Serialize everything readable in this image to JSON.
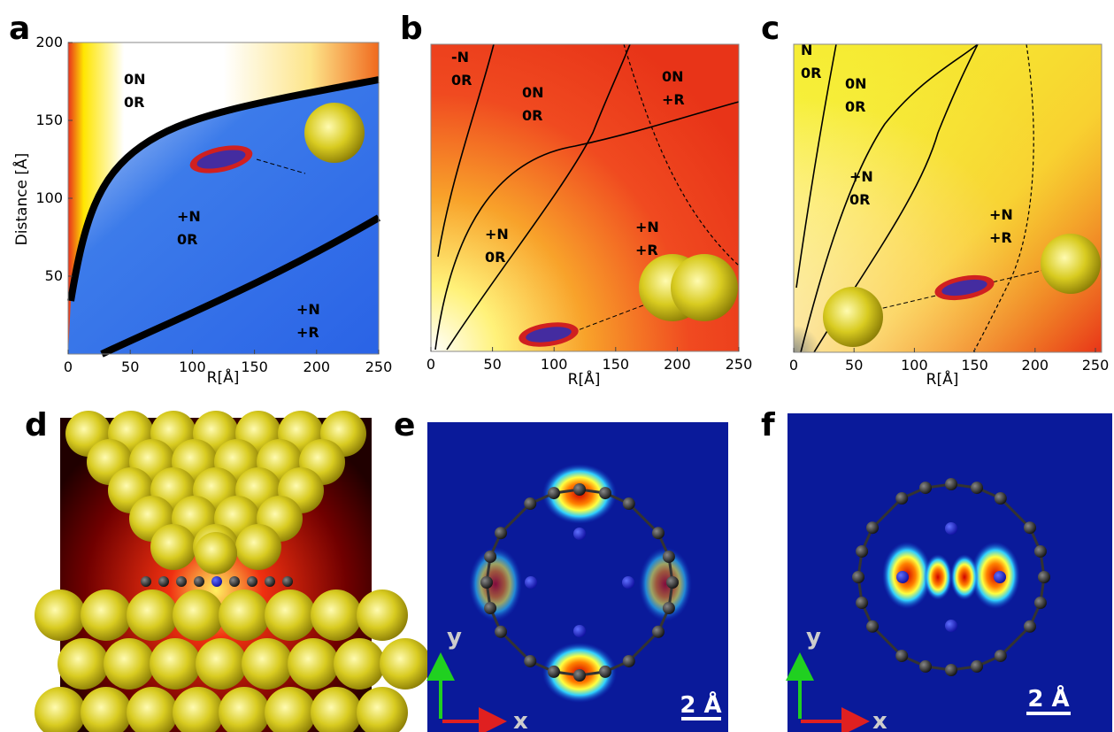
{
  "panels": [
    {
      "label": "a",
      "x_axis": {
        "title": "R[Å]",
        "lim": [
          0,
          250
        ],
        "ticks": [
          0,
          50,
          100,
          150,
          200,
          250
        ]
      },
      "y_axis": {
        "title": "Distance [Å]",
        "lim": [
          0,
          200
        ],
        "ticks": [
          50,
          100,
          150,
          200
        ]
      },
      "regions": [
        [
          "0N",
          "0R"
        ],
        [
          "+N",
          "0R"
        ],
        [
          "+N",
          "+R"
        ]
      ]
    },
    {
      "label": "b",
      "x_axis": {
        "title": "R[Å]",
        "lim": [
          0,
          250
        ],
        "ticks": [
          0,
          50,
          100,
          150,
          200,
          250
        ]
      },
      "regions": [
        [
          "-N",
          "0R"
        ],
        [
          "0N",
          "0R"
        ],
        [
          "0N",
          "+R"
        ],
        [
          "+N",
          "0R"
        ],
        [
          "+N",
          "+R"
        ]
      ]
    },
    {
      "label": "c",
      "x_axis": {
        "title": "R[Å]",
        "lim": [
          0,
          250
        ],
        "ticks": [
          0,
          50,
          100,
          150,
          200,
          250
        ]
      },
      "regions": [
        [
          "N",
          "0R"
        ],
        [
          "0N",
          "0R"
        ],
        [
          "+N",
          "0R"
        ],
        [
          "+N",
          "+R"
        ]
      ]
    },
    {
      "label": "d"
    },
    {
      "label": "e",
      "axes": [
        "x",
        "y"
      ],
      "scale_bar": "2 Å"
    },
    {
      "label": "f",
      "axes": [
        "x",
        "y"
      ],
      "scale_bar": "2 Å"
    }
  ]
}
